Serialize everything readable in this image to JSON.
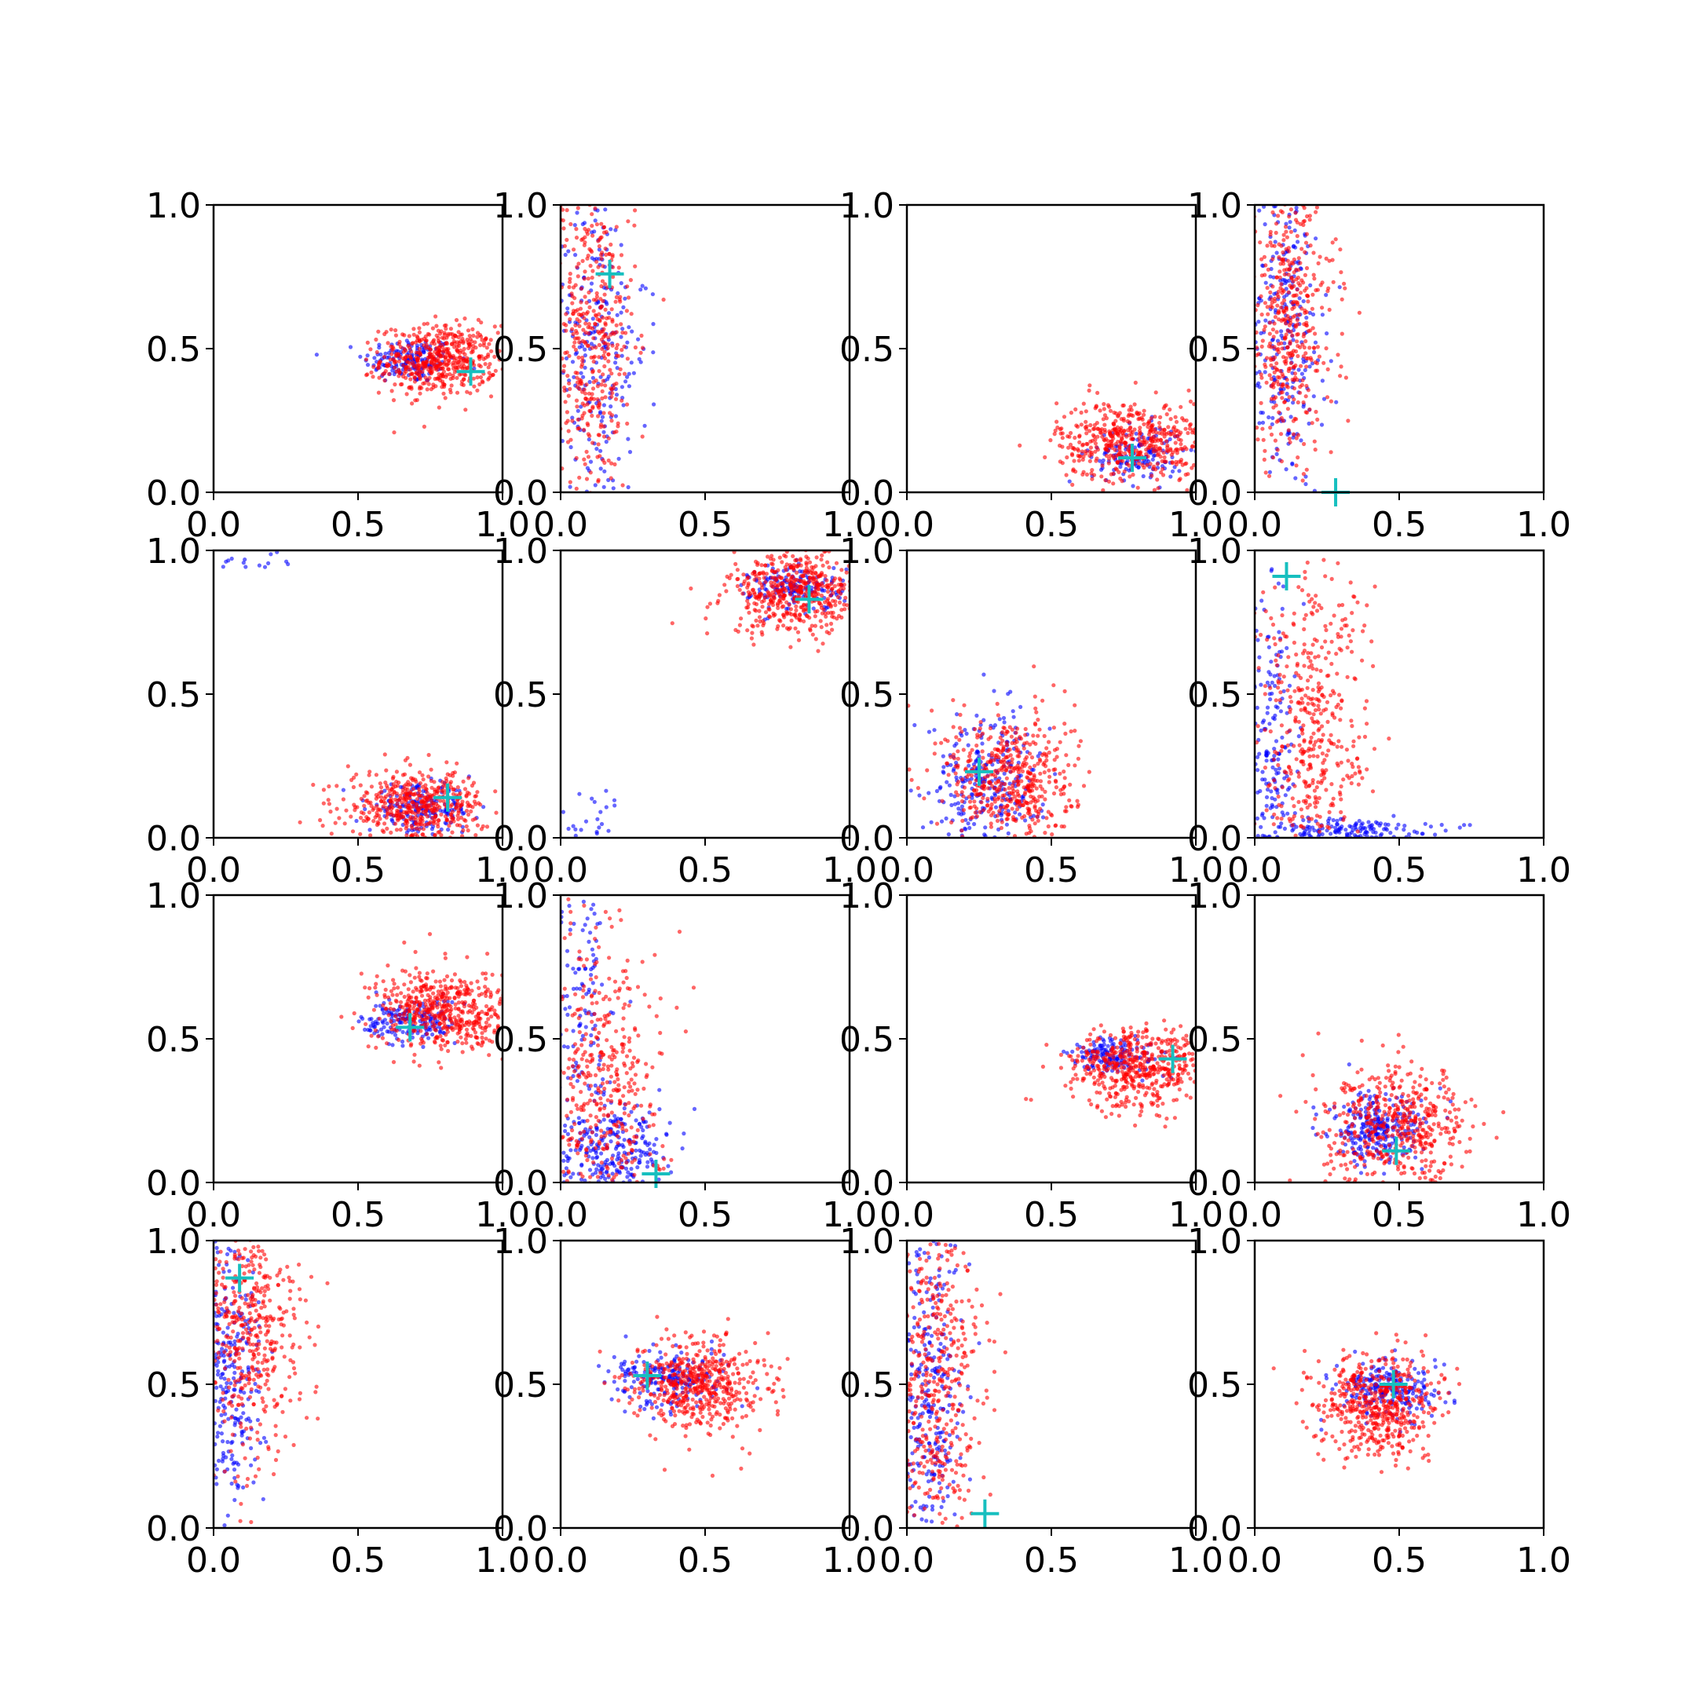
{
  "figure": {
    "rows": 4,
    "cols": 4,
    "background": "#ffffff"
  },
  "colors": {
    "series_blue": "#0000ff",
    "series_red": "#ff0000",
    "marker_cyan": "#17bfbf"
  },
  "chart_data": [
    {
      "type": "scatter",
      "row": 0,
      "col": 0,
      "xlim": [
        0,
        1
      ],
      "ylim": [
        0,
        1
      ],
      "xticks": [
        "0.0",
        "0.5",
        "1.0"
      ],
      "yticks": [
        "0.0",
        "0.5",
        "1.0"
      ],
      "series": [
        {
          "color": "blue",
          "cx": 0.68,
          "cy": 0.46,
          "sx": 0.08,
          "sy": 0.04,
          "n": 160
        },
        {
          "color": "red",
          "cx": 0.78,
          "cy": 0.46,
          "sx": 0.1,
          "sy": 0.06,
          "n": 520
        }
      ],
      "marker": {
        "x": 0.89,
        "y": 0.42
      }
    },
    {
      "type": "scatter",
      "row": 0,
      "col": 1,
      "xlim": [
        0,
        1
      ],
      "ylim": [
        0,
        1
      ],
      "xticks": [
        "0.0",
        "0.5",
        "1.0"
      ],
      "yticks": [
        "0.0",
        "0.5",
        "1.0"
      ],
      "series": [
        {
          "color": "blue",
          "cx": 0.12,
          "cy": 0.5,
          "sx": 0.09,
          "sy": 0.3,
          "n": 260
        },
        {
          "color": "red",
          "cx": 0.1,
          "cy": 0.55,
          "sx": 0.08,
          "sy": 0.28,
          "n": 480
        }
      ],
      "marker": {
        "x": 0.17,
        "y": 0.76
      }
    },
    {
      "type": "scatter",
      "row": 0,
      "col": 2,
      "xlim": [
        0,
        1
      ],
      "ylim": [
        0,
        1
      ],
      "xticks": [
        "0.0",
        "0.5",
        "1.0"
      ],
      "yticks": [
        "0.0",
        "0.5",
        "1.0"
      ],
      "series": [
        {
          "color": "blue",
          "cx": 0.8,
          "cy": 0.13,
          "sx": 0.08,
          "sy": 0.05,
          "n": 140
        },
        {
          "color": "red",
          "cx": 0.78,
          "cy": 0.18,
          "sx": 0.13,
          "sy": 0.07,
          "n": 500
        }
      ],
      "marker": {
        "x": 0.78,
        "y": 0.12
      }
    },
    {
      "type": "scatter",
      "row": 0,
      "col": 3,
      "xlim": [
        0,
        1
      ],
      "ylim": [
        0,
        1
      ],
      "xticks": [
        "0.0",
        "0.5",
        "1.0"
      ],
      "yticks": [
        "0.0",
        "0.5",
        "1.0"
      ],
      "series": [
        {
          "color": "blue",
          "cx": 0.1,
          "cy": 0.55,
          "sx": 0.07,
          "sy": 0.28,
          "n": 280
        },
        {
          "color": "red",
          "cx": 0.12,
          "cy": 0.58,
          "sx": 0.08,
          "sy": 0.25,
          "n": 460
        }
      ],
      "marker": {
        "x": 0.28,
        "y": 0.0
      }
    },
    {
      "type": "scatter",
      "row": 1,
      "col": 0,
      "xlim": [
        0,
        1
      ],
      "ylim": [
        0,
        1
      ],
      "xticks": [
        "0.0",
        "0.5",
        "1.0"
      ],
      "yticks": [
        "0.0",
        "0.5",
        "1.0"
      ],
      "series": [
        {
          "color": "blue",
          "cx": 0.72,
          "cy": 0.1,
          "sx": 0.09,
          "sy": 0.04,
          "n": 180
        },
        {
          "color": "red",
          "cx": 0.7,
          "cy": 0.11,
          "sx": 0.12,
          "sy": 0.06,
          "n": 500
        },
        {
          "color": "blue",
          "cx": 0.12,
          "cy": 0.96,
          "sx": 0.07,
          "sy": 0.02,
          "n": 14
        }
      ],
      "marker": {
        "x": 0.81,
        "y": 0.14
      }
    },
    {
      "type": "scatter",
      "row": 1,
      "col": 1,
      "xlim": [
        0,
        1
      ],
      "ylim": [
        0,
        1
      ],
      "xticks": [
        "0.0",
        "0.5",
        "1.0"
      ],
      "yticks": [
        "0.0",
        "0.5",
        "1.0"
      ],
      "series": [
        {
          "color": "blue",
          "cx": 0.82,
          "cy": 0.87,
          "sx": 0.08,
          "sy": 0.04,
          "n": 160
        },
        {
          "color": "red",
          "cx": 0.82,
          "cy": 0.85,
          "sx": 0.12,
          "sy": 0.07,
          "n": 520
        },
        {
          "color": "blue",
          "cx": 0.1,
          "cy": 0.07,
          "sx": 0.06,
          "sy": 0.06,
          "n": 26
        }
      ],
      "marker": {
        "x": 0.86,
        "y": 0.83
      }
    },
    {
      "type": "scatter",
      "row": 1,
      "col": 2,
      "xlim": [
        0,
        1
      ],
      "ylim": [
        0,
        1
      ],
      "xticks": [
        "0.0",
        "0.5",
        "1.0"
      ],
      "yticks": [
        "0.0",
        "0.5",
        "1.0"
      ],
      "series": [
        {
          "color": "blue",
          "cx": 0.28,
          "cy": 0.2,
          "sx": 0.1,
          "sy": 0.12,
          "n": 280
        },
        {
          "color": "red",
          "cx": 0.36,
          "cy": 0.2,
          "sx": 0.11,
          "sy": 0.12,
          "n": 500
        }
      ],
      "marker": {
        "x": 0.25,
        "y": 0.23
      }
    },
    {
      "type": "scatter",
      "row": 1,
      "col": 3,
      "xlim": [
        0,
        1
      ],
      "ylim": [
        0,
        1
      ],
      "xticks": [
        "0.0",
        "0.5",
        "1.0"
      ],
      "yticks": [
        "0.0",
        "0.5",
        "1.0"
      ],
      "series": [
        {
          "color": "blue",
          "cx": 0.06,
          "cy": 0.3,
          "sx": 0.04,
          "sy": 0.28,
          "n": 180
        },
        {
          "color": "blue",
          "cx": 0.3,
          "cy": 0.03,
          "sx": 0.15,
          "sy": 0.02,
          "n": 160
        },
        {
          "color": "red",
          "cx": 0.2,
          "cy": 0.35,
          "sx": 0.1,
          "sy": 0.3,
          "n": 480
        }
      ],
      "marker": {
        "x": 0.11,
        "y": 0.91
      }
    },
    {
      "type": "scatter",
      "row": 2,
      "col": 0,
      "xlim": [
        0,
        1
      ],
      "ylim": [
        0,
        1
      ],
      "xticks": [
        "0.0",
        "0.5",
        "1.0"
      ],
      "yticks": [
        "0.0",
        "0.5",
        "1.0"
      ],
      "series": [
        {
          "color": "blue",
          "cx": 0.68,
          "cy": 0.56,
          "sx": 0.08,
          "sy": 0.04,
          "n": 180
        },
        {
          "color": "red",
          "cx": 0.8,
          "cy": 0.6,
          "sx": 0.12,
          "sy": 0.07,
          "n": 520
        }
      ],
      "marker": {
        "x": 0.68,
        "y": 0.54
      }
    },
    {
      "type": "scatter",
      "row": 2,
      "col": 1,
      "xlim": [
        0,
        1
      ],
      "ylim": [
        0,
        1
      ],
      "xticks": [
        "0.0",
        "0.5",
        "1.0"
      ],
      "yticks": [
        "0.0",
        "0.5",
        "1.0"
      ],
      "series": [
        {
          "color": "blue",
          "cx": 0.18,
          "cy": 0.1,
          "sx": 0.1,
          "sy": 0.08,
          "n": 260
        },
        {
          "color": "blue",
          "cx": 0.08,
          "cy": 0.6,
          "sx": 0.05,
          "sy": 0.25,
          "n": 120
        },
        {
          "color": "red",
          "cx": 0.15,
          "cy": 0.35,
          "sx": 0.1,
          "sy": 0.3,
          "n": 480
        }
      ],
      "marker": {
        "x": 0.33,
        "y": 0.03
      }
    },
    {
      "type": "scatter",
      "row": 2,
      "col": 2,
      "xlim": [
        0,
        1
      ],
      "ylim": [
        0,
        1
      ],
      "xticks": [
        "0.0",
        "0.5",
        "1.0"
      ],
      "yticks": [
        "0.0",
        "0.5",
        "1.0"
      ],
      "series": [
        {
          "color": "blue",
          "cx": 0.72,
          "cy": 0.44,
          "sx": 0.08,
          "sy": 0.03,
          "n": 150
        },
        {
          "color": "red",
          "cx": 0.8,
          "cy": 0.4,
          "sx": 0.12,
          "sy": 0.07,
          "n": 520
        }
      ],
      "marker": {
        "x": 0.92,
        "y": 0.43
      }
    },
    {
      "type": "scatter",
      "row": 2,
      "col": 3,
      "xlim": [
        0,
        1
      ],
      "ylim": [
        0,
        1
      ],
      "xticks": [
        "0.0",
        "0.5",
        "1.0"
      ],
      "yticks": [
        "0.0",
        "0.5",
        "1.0"
      ],
      "series": [
        {
          "color": "blue",
          "cx": 0.42,
          "cy": 0.18,
          "sx": 0.08,
          "sy": 0.06,
          "n": 260
        },
        {
          "color": "red",
          "cx": 0.5,
          "cy": 0.2,
          "sx": 0.13,
          "sy": 0.1,
          "n": 500
        }
      ],
      "marker": {
        "x": 0.49,
        "y": 0.11
      }
    },
    {
      "type": "scatter",
      "row": 3,
      "col": 0,
      "xlim": [
        0,
        1
      ],
      "ylim": [
        0,
        1
      ],
      "xticks": [
        "0.0",
        "0.5",
        "1.0"
      ],
      "yticks": [
        "0.0",
        "0.5",
        "1.0"
      ],
      "series": [
        {
          "color": "blue",
          "cx": 0.06,
          "cy": 0.55,
          "sx": 0.05,
          "sy": 0.3,
          "n": 280
        },
        {
          "color": "red",
          "cx": 0.13,
          "cy": 0.7,
          "sx": 0.09,
          "sy": 0.22,
          "n": 480
        }
      ],
      "marker": {
        "x": 0.09,
        "y": 0.87
      }
    },
    {
      "type": "scatter",
      "row": 3,
      "col": 1,
      "xlim": [
        0,
        1
      ],
      "ylim": [
        0,
        1
      ],
      "xticks": [
        "0.0",
        "0.5",
        "1.0"
      ],
      "yticks": [
        "0.0",
        "0.5",
        "1.0"
      ],
      "series": [
        {
          "color": "blue",
          "cx": 0.38,
          "cy": 0.52,
          "sx": 0.1,
          "sy": 0.05,
          "n": 200
        },
        {
          "color": "red",
          "cx": 0.48,
          "cy": 0.5,
          "sx": 0.11,
          "sy": 0.08,
          "n": 520
        }
      ],
      "marker": {
        "x": 0.3,
        "y": 0.53
      }
    },
    {
      "type": "scatter",
      "row": 3,
      "col": 2,
      "xlim": [
        0,
        1
      ],
      "ylim": [
        0,
        1
      ],
      "xticks": [
        "0.0",
        "0.5",
        "1.0"
      ],
      "yticks": [
        "0.0",
        "0.5",
        "1.0"
      ],
      "series": [
        {
          "color": "blue",
          "cx": 0.08,
          "cy": 0.45,
          "sx": 0.06,
          "sy": 0.3,
          "n": 300
        },
        {
          "color": "red",
          "cx": 0.1,
          "cy": 0.5,
          "sx": 0.08,
          "sy": 0.28,
          "n": 460
        }
      ],
      "marker": {
        "x": 0.27,
        "y": 0.05
      }
    },
    {
      "type": "scatter",
      "row": 3,
      "col": 3,
      "xlim": [
        0,
        1
      ],
      "ylim": [
        0,
        1
      ],
      "xticks": [
        "0.0",
        "0.5",
        "1.0"
      ],
      "yticks": [
        "0.0",
        "0.5",
        "1.0"
      ],
      "series": [
        {
          "color": "blue",
          "cx": 0.46,
          "cy": 0.48,
          "sx": 0.09,
          "sy": 0.05,
          "n": 220
        },
        {
          "color": "red",
          "cx": 0.43,
          "cy": 0.43,
          "sx": 0.1,
          "sy": 0.09,
          "n": 520
        }
      ],
      "marker": {
        "x": 0.48,
        "y": 0.5
      }
    }
  ]
}
